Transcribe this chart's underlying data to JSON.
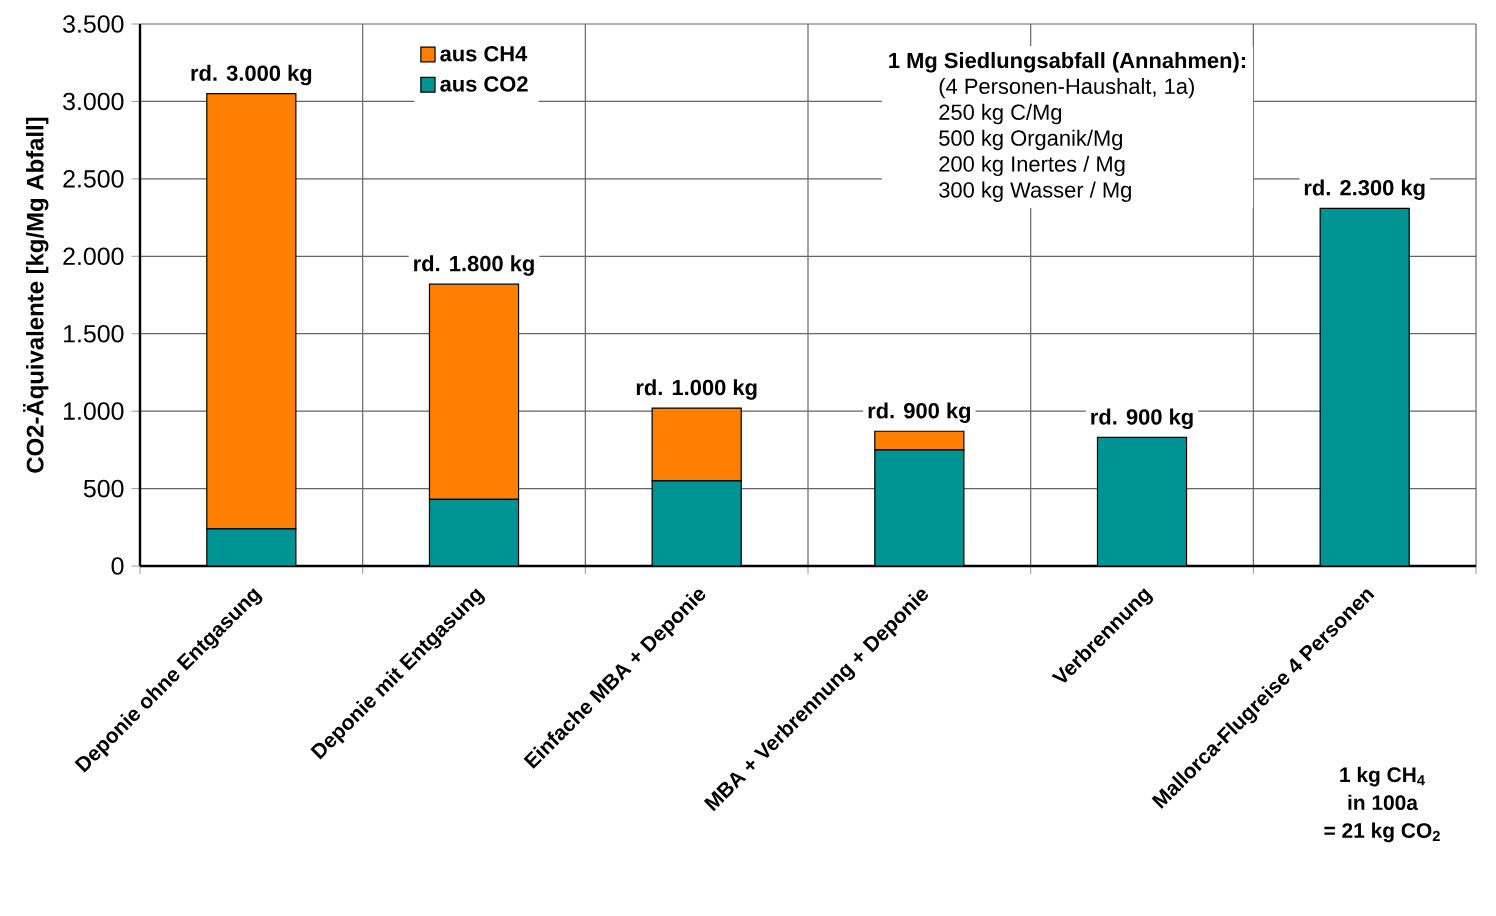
{
  "chart_data": {
    "type": "bar",
    "stacked": true,
    "ylabel": "CO2-Äquivalente [kg/Mg Abfall]",
    "categories": [
      "Deponie ohne Entgasung",
      "Deponie mit Entgasung",
      "Einfache MBA  + Deponie",
      "MBA + Verbrennung + Deponie",
      "Verbrennung",
      "Mallorca-Flugreise 4 Personen"
    ],
    "series": [
      {
        "name": "aus CO2",
        "color": "#009393",
        "values": [
          240,
          430,
          550,
          750,
          830,
          2310
        ]
      },
      {
        "name": "aus CH4",
        "color": "#ff8000",
        "values": [
          2810,
          1390,
          470,
          120,
          0,
          0
        ]
      }
    ],
    "ylim": [
      0,
      3500
    ],
    "yticks": [
      0,
      {
        "value": 500,
        "label": "500"
      },
      {
        "value": 1000,
        "label": "1.000"
      },
      {
        "value": 1500,
        "label": "1.500"
      },
      {
        "value": 2000,
        "label": "2.000"
      },
      {
        "value": 2500,
        "label": "2.500"
      },
      {
        "value": 3000,
        "label": "3.000"
      },
      {
        "value": 3500,
        "label": "3.500"
      }
    ],
    "grid": true,
    "legend": "top left",
    "annotations": [
      {
        "text": "rd. 3.000 kg",
        "x": "Deponie ohne Entgasung",
        "y": 3050
      },
      {
        "text": "rd. 1.800 kg",
        "x": "Deponie mit Entgasung",
        "y": 1820
      },
      {
        "text": "rd. 1.000 kg",
        "x": "Einfache MBA  + Deponie",
        "y": 1020
      },
      {
        "text": "rd. 900 kg",
        "x": "MBA + Verbrennung + Deponie",
        "y": 870
      },
      {
        "text": "rd. 900 kg",
        "x": "Verbrennung",
        "y": 830
      },
      {
        "text": "rd. 2.300 kg",
        "x": "Mallorca-Flugreise 4 Personen",
        "y": 2310
      },
      "**1 Mg Siedlungsabfall (Annahmen):**",
      "(4 Personen-Haushalt, 1a)",
      "250 kg C/Mg",
      "500 kg Organik/Mg",
      "200 kg Inertes / Mg",
      "300 kg Wasser / Mg",
      "1 kg CH$_{4}$",
      "in 100a",
      "= 21 kg CO$_{2}$"
    ]
  }
}
